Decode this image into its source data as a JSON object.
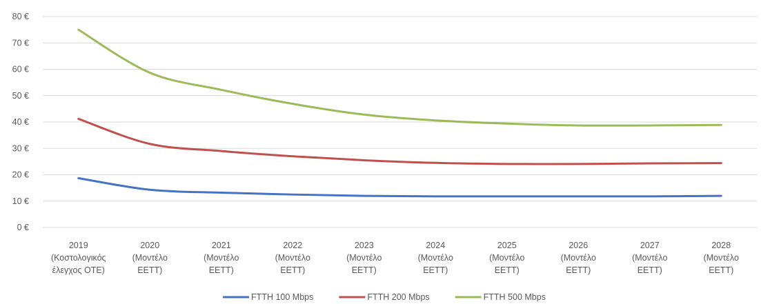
{
  "chart_data": {
    "type": "line",
    "title": "",
    "xlabel": "",
    "ylabel": "",
    "ylim": [
      0,
      80
    ],
    "yticks": [
      0,
      10,
      20,
      30,
      40,
      50,
      60,
      70,
      80
    ],
    "ytick_suffix": " €",
    "grid": true,
    "legend": "bottom",
    "categories": [
      [
        "2019",
        "(Κοστολογικός",
        "έλεγχος ΟΤΕ)"
      ],
      [
        "2020",
        "(Μοντέλο",
        "ΕΕΤΤ)"
      ],
      [
        "2021",
        "(Μοντέλο",
        "ΕΕΤΤ)"
      ],
      [
        "2022",
        "(Μοντέλο",
        "ΕΕΤΤ)"
      ],
      [
        "2023",
        "(Μοντέλο",
        "ΕΕΤΤ)"
      ],
      [
        "2024",
        "(Μοντέλο",
        "ΕΕΤΤ)"
      ],
      [
        "2025",
        "(Μοντέλο",
        "ΕΕΤΤ)"
      ],
      [
        "2026",
        "(Μοντέλο",
        "ΕΕΤΤ)"
      ],
      [
        "2027",
        "(Μοντέλο",
        "ΕΕΤΤ)"
      ],
      [
        "2028",
        "(Μοντέλο",
        "ΕΕΤΤ)"
      ]
    ],
    "series": [
      {
        "name": "FTTH 100 Mbps",
        "color": "#4472C4",
        "values": [
          18.7,
          14.3,
          13.2,
          12.5,
          12.0,
          11.8,
          11.8,
          11.8,
          11.8,
          12.0
        ]
      },
      {
        "name": "FTTH 200 Mbps",
        "color": "#C0504D",
        "values": [
          41.2,
          31.7,
          29.0,
          27.0,
          25.5,
          24.5,
          24.1,
          24.1,
          24.3,
          24.4
        ]
      },
      {
        "name": "FTTH 500 Mbps",
        "color": "#9BBB59",
        "values": [
          75.0,
          58.7,
          52.2,
          46.9,
          42.8,
          40.6,
          39.4,
          38.7,
          38.7,
          38.9
        ]
      }
    ]
  }
}
